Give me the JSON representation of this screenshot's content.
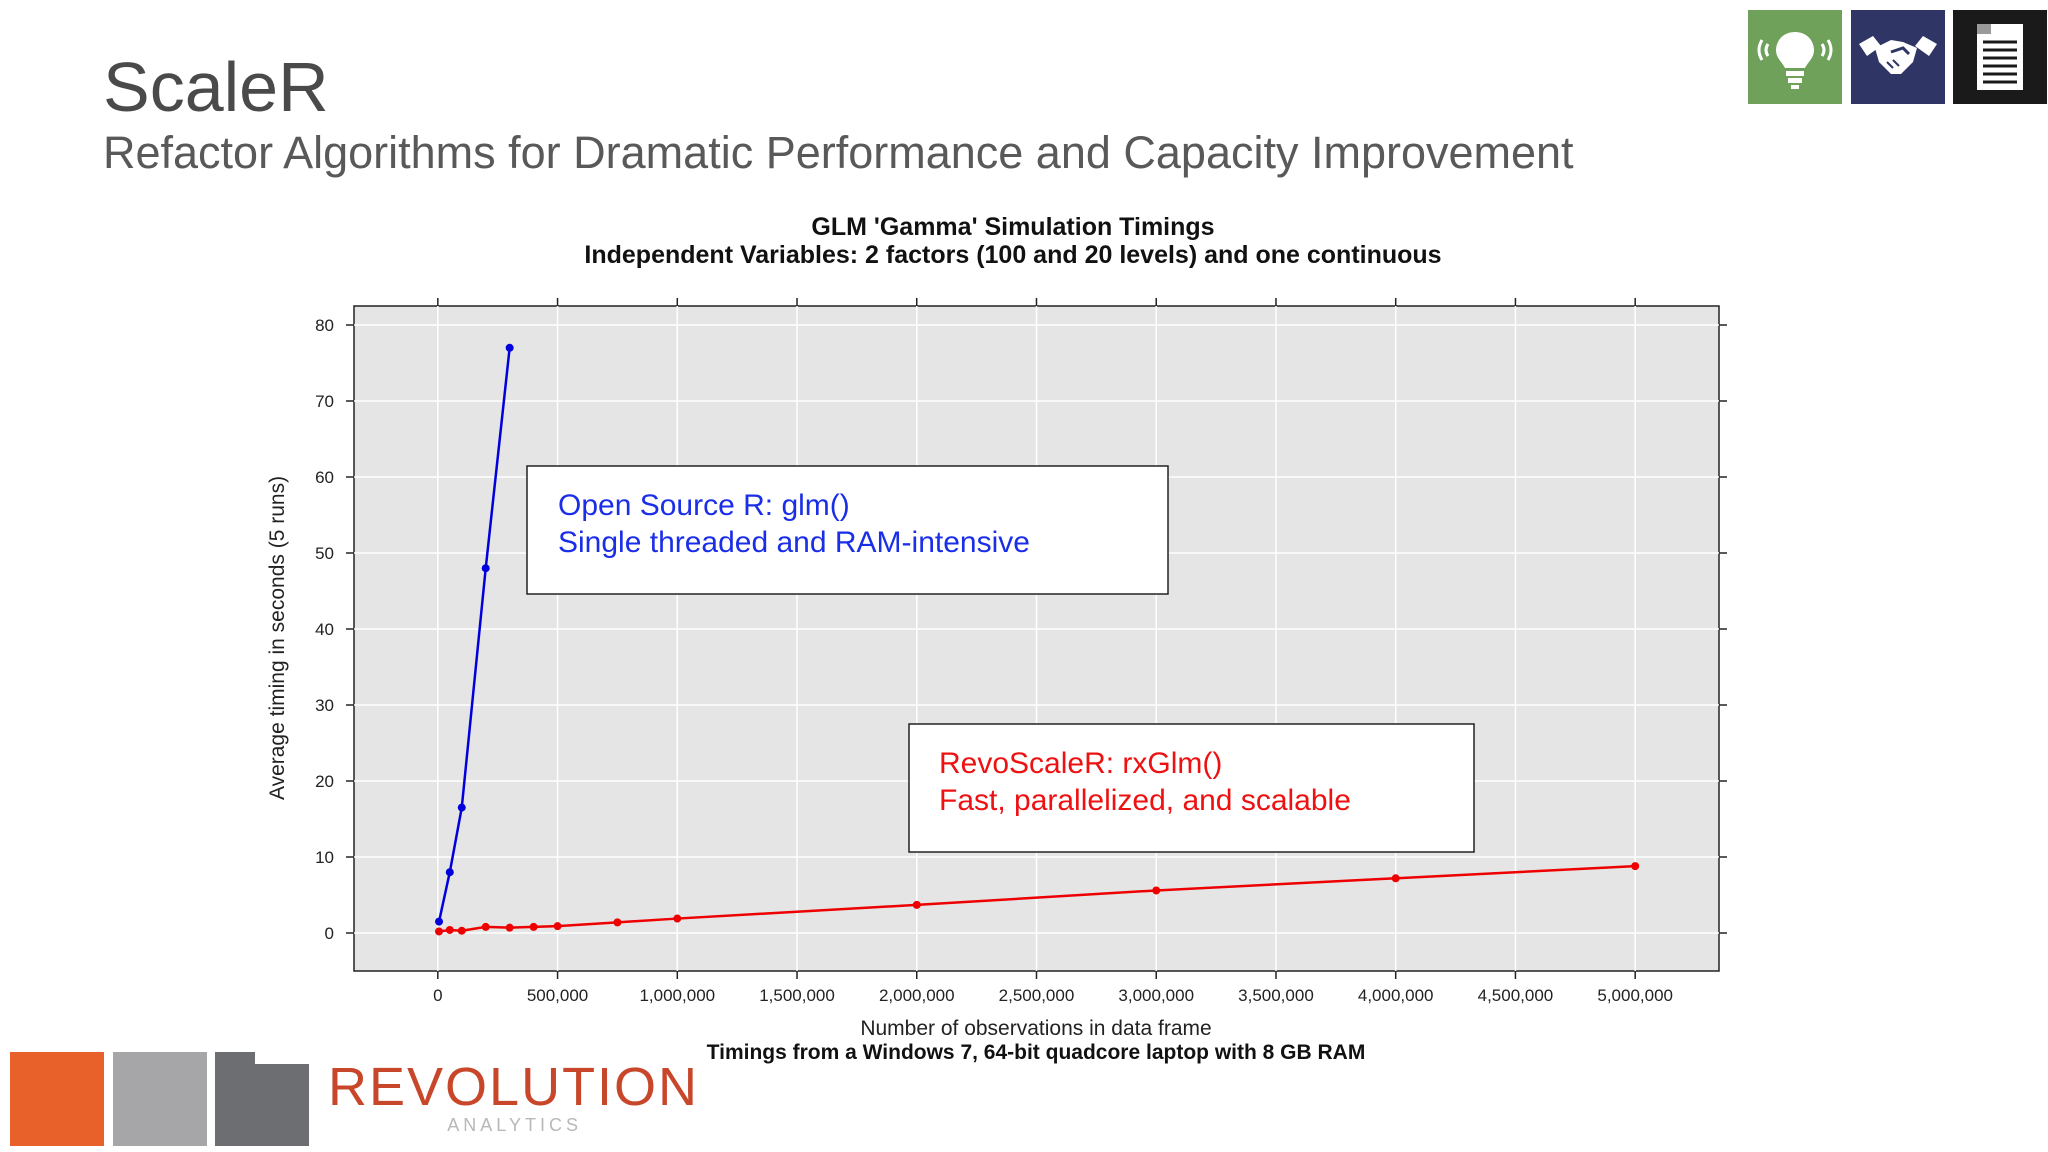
{
  "slide": {
    "title": "ScaleR",
    "subtitle": "Refactor Algorithms for Dramatic Performance and Capacity Improvement"
  },
  "icons": [
    "lightbulb-icon",
    "handshake-icon",
    "document-icon"
  ],
  "brand": {
    "logo_main": "REVOLUTION",
    "logo_sub": "ANALYTICS",
    "colors": {
      "orange": "#e8612a",
      "grey": "#a6a6a8",
      "dark": "#6d6e71",
      "logo": "#c8472a"
    }
  },
  "chart_data": {
    "type": "line",
    "title": "GLM 'Gamma' Simulation Timings",
    "subtitle": "Independent Variables: 2 factors (100 and 20 levels) and one continuous",
    "xlabel": "Number of observations in data frame",
    "ylabel": "Average timing in seconds (5 runs)",
    "footnote": "Timings from a Windows 7, 64-bit quadcore laptop with 8 GB RAM",
    "xlim": [
      -350000,
      5350000
    ],
    "ylim": [
      -5,
      82.5
    ],
    "x_ticks": [
      0,
      500000,
      1000000,
      1500000,
      2000000,
      2500000,
      3000000,
      3500000,
      4000000,
      4500000,
      5000000
    ],
    "x_tick_labels": [
      "0",
      "500,000",
      "1,000,000",
      "1,500,000",
      "2,000,000",
      "2,500,000",
      "3,000,000",
      "3,500,000",
      "4,000,000",
      "4,500,000",
      "5,000,000"
    ],
    "y_ticks": [
      0,
      10,
      20,
      30,
      40,
      50,
      60,
      70,
      80
    ],
    "y_tick_labels": [
      "0",
      "10",
      "20",
      "30",
      "40",
      "50",
      "60",
      "70",
      "80"
    ],
    "grid": true,
    "series": [
      {
        "color": "#0000dd",
        "x": [
          5000,
          50000,
          100000,
          200000,
          300000
        ],
        "y": [
          1.5,
          8.0,
          16.5,
          48.0,
          77.0
        ]
      },
      {
        "color": "#ee0000",
        "x": [
          5000,
          50000,
          100000,
          200000,
          300000,
          400000,
          500000,
          750000,
          1000000,
          2000000,
          3000000,
          4000000,
          5000000
        ],
        "y": [
          0.2,
          0.4,
          0.3,
          0.8,
          0.7,
          0.8,
          0.9,
          1.4,
          1.9,
          3.7,
          5.6,
          7.2,
          8.8
        ]
      }
    ],
    "annotations": [
      {
        "line1": "Open Source R: glm()",
        "line2": "Single threaded and RAM-intensive",
        "color": "#1a2ee8"
      },
      {
        "line1": "RevoScaleR: rxGlm()",
        "line2": "Fast, parallelized, and scalable",
        "color": "#ee1111"
      }
    ]
  }
}
